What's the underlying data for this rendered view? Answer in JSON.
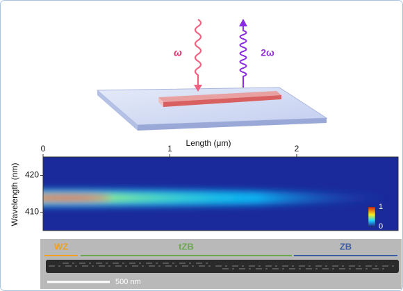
{
  "schematic": {
    "incident_label": "ω",
    "emitted_label": "2ω"
  },
  "chart_data": {
    "type": "heatmap",
    "xlabel": "Length (μm)",
    "ylabel": "Wavelength (nm)",
    "xlim": [
      0,
      2.8
    ],
    "xticks": [
      0,
      1,
      2
    ],
    "ylim": [
      405,
      425
    ],
    "yticks": [
      410,
      420
    ],
    "colorbar_ticks": [
      0,
      1
    ]
  },
  "sem": {
    "segments": [
      {
        "label": "WZ",
        "color": "#f0a020"
      },
      {
        "label": "tZB",
        "color": "#6aa84f"
      },
      {
        "label": "ZB",
        "color": "#3b5ba5"
      }
    ],
    "scale_bar": "500 nm"
  }
}
